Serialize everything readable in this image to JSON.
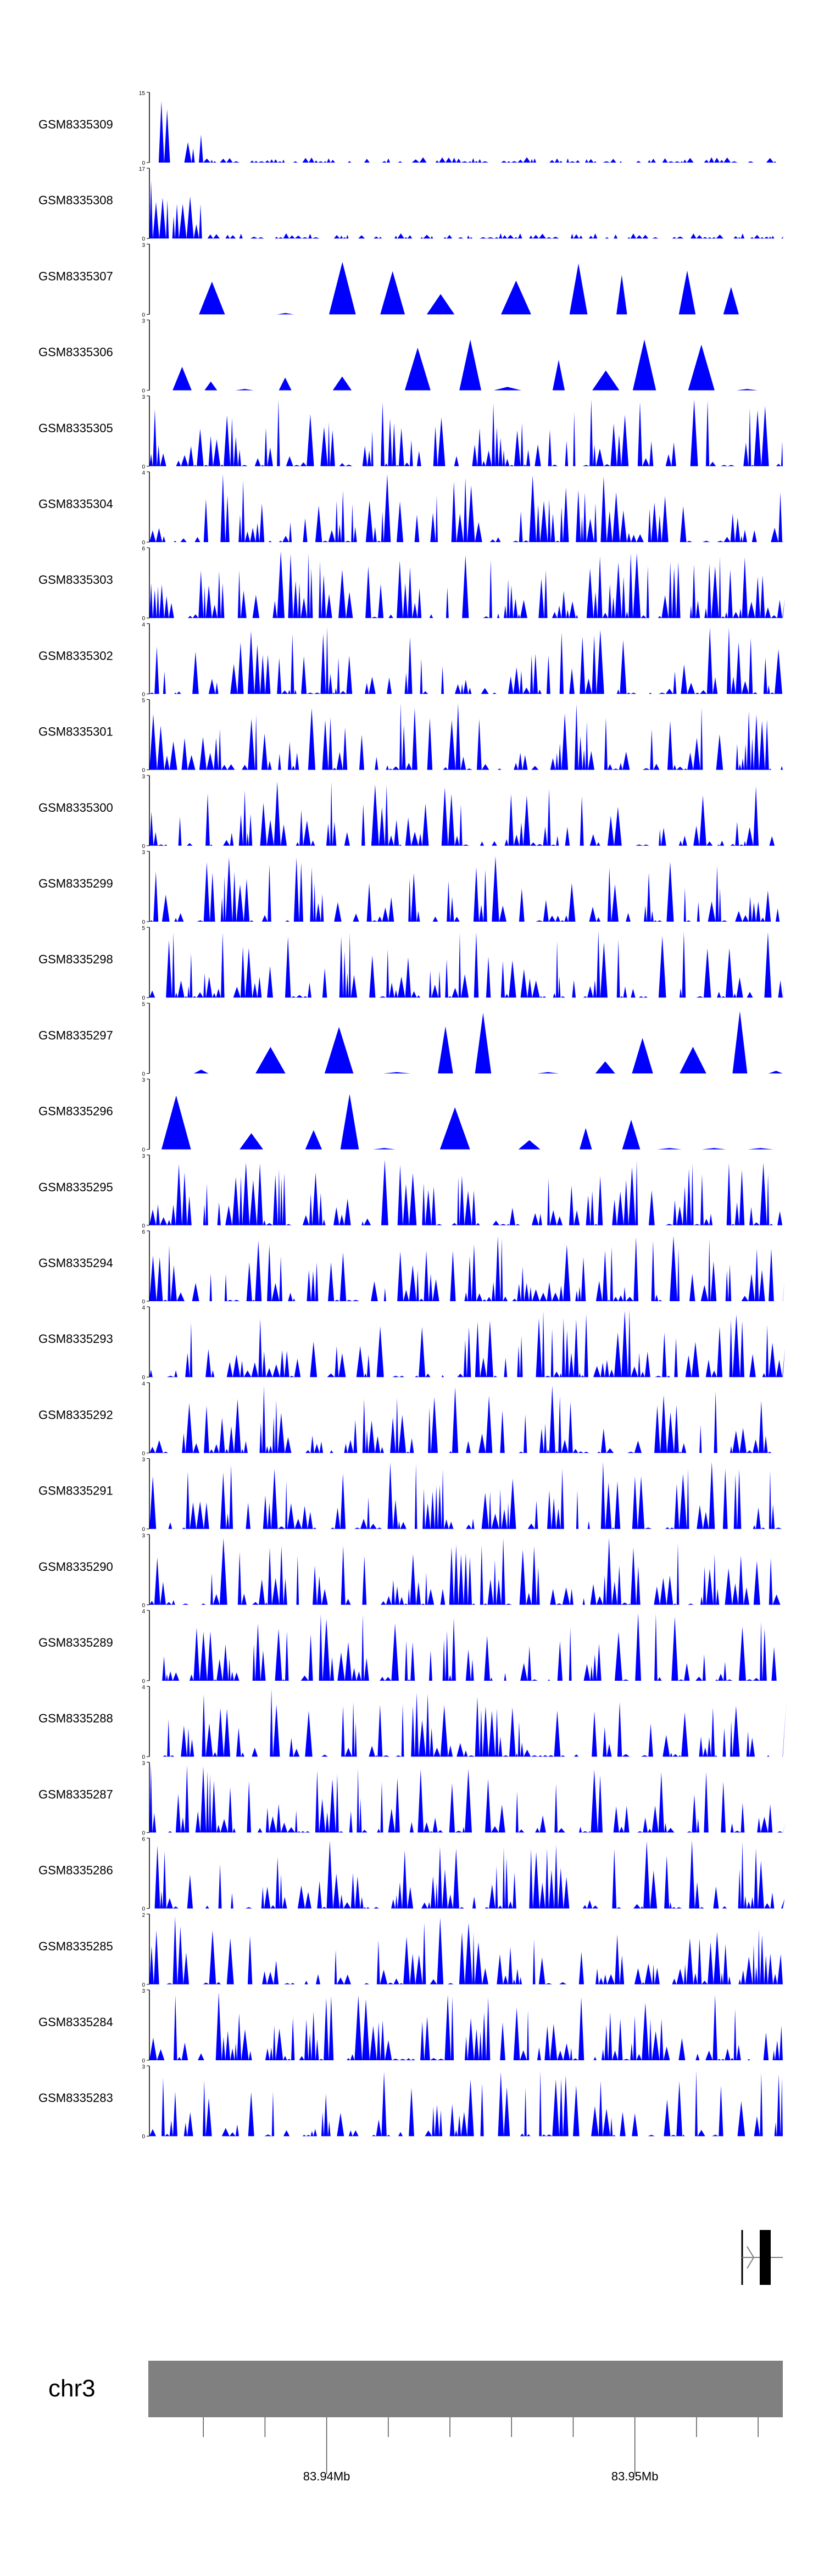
{
  "chart_data": {
    "type": "area",
    "description_free": true,
    "fill_color": "#0000FF",
    "axis_line_color": "#000000",
    "tracks": [
      {
        "name": "GSM8335309",
        "ymax": "15"
      },
      {
        "name": "GSM8335308",
        "ymax": "17"
      },
      {
        "name": "GSM8335307",
        "ymax": "3"
      },
      {
        "name": "GSM8335306",
        "ymax": "3"
      },
      {
        "name": "GSM8335305",
        "ymax": "3"
      },
      {
        "name": "GSM8335304",
        "ymax": "4"
      },
      {
        "name": "GSM8335303",
        "ymax": "6"
      },
      {
        "name": "GSM8335302",
        "ymax": "4"
      },
      {
        "name": "GSM8335301",
        "ymax": "5"
      },
      {
        "name": "GSM8335300",
        "ymax": "3"
      },
      {
        "name": "GSM8335299",
        "ymax": "3"
      },
      {
        "name": "GSM8335298",
        "ymax": "5"
      },
      {
        "name": "GSM8335297",
        "ymax": "5"
      },
      {
        "name": "GSM8335296",
        "ymax": "3"
      },
      {
        "name": "GSM8335295",
        "ymax": "3"
      },
      {
        "name": "GSM8335294",
        "ymax": "6"
      },
      {
        "name": "GSM8335293",
        "ymax": "4"
      },
      {
        "name": "GSM8335292",
        "ymax": "4"
      },
      {
        "name": "GSM8335291",
        "ymax": "3"
      },
      {
        "name": "GSM8335290",
        "ymax": "3"
      },
      {
        "name": "GSM8335289",
        "ymax": "4"
      },
      {
        "name": "GSM8335288",
        "ymax": "4"
      },
      {
        "name": "GSM8335287",
        "ymax": "3"
      },
      {
        "name": "GSM8335286",
        "ymax": "6"
      },
      {
        "name": "GSM8335285",
        "ymax": "2"
      },
      {
        "name": "GSM8335284",
        "ymax": "3"
      },
      {
        "name": "GSM8335283",
        "ymax": "3"
      }
    ],
    "ymin_label": "0",
    "chromosome": "chr3",
    "genomic_axis": {
      "labels": [
        "83.94Mb",
        "83.95Mb"
      ],
      "label_positions_mb": [
        83.94,
        83.95
      ],
      "range_mb": [
        83.93425,
        83.9548
      ],
      "minor_tick_step_mb": 0.002
    },
    "ideogram_color": "#808080",
    "gene_model_color": "#000000"
  }
}
